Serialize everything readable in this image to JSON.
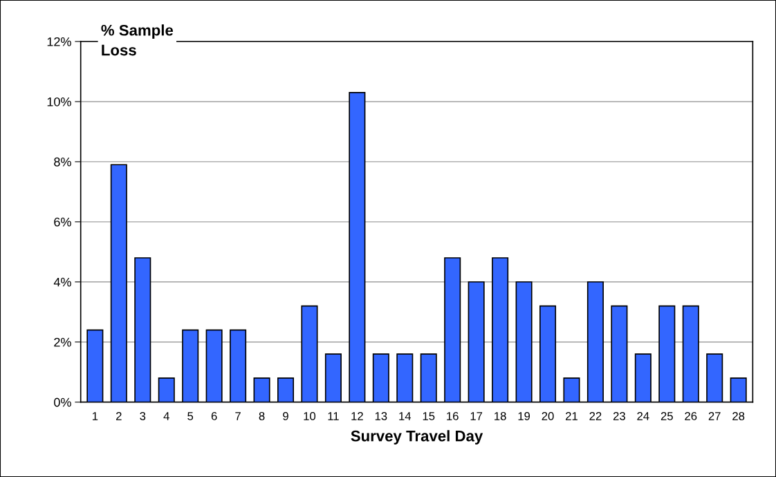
{
  "chart_data": {
    "type": "bar",
    "ylabel": "% Sample\nLoss",
    "xlabel": "Survey Travel Day",
    "categories": [
      "1",
      "2",
      "3",
      "4",
      "5",
      "6",
      "7",
      "8",
      "9",
      "10",
      "11",
      "12",
      "13",
      "14",
      "15",
      "16",
      "17",
      "18",
      "19",
      "20",
      "21",
      "22",
      "23",
      "24",
      "25",
      "26",
      "27",
      "28"
    ],
    "values": [
      2.4,
      7.9,
      4.8,
      0.8,
      2.4,
      2.4,
      2.4,
      0.8,
      0.8,
      3.2,
      1.6,
      10.3,
      1.6,
      1.6,
      1.6,
      4.8,
      4.0,
      4.8,
      4.0,
      3.2,
      0.8,
      4.0,
      3.2,
      1.6,
      3.2,
      3.2,
      1.6,
      0.8
    ],
    "color": "#3366ff",
    "ylim": [
      0,
      12
    ],
    "yticks": [
      {
        "value": 0,
        "label": "0%"
      },
      {
        "value": 2,
        "label": "2%"
      },
      {
        "value": 4,
        "label": "4%"
      },
      {
        "value": 6,
        "label": "6%"
      },
      {
        "value": 8,
        "label": "8%"
      },
      {
        "value": 10,
        "label": "10%"
      },
      {
        "value": 12,
        "label": "12%"
      }
    ],
    "grid": "y"
  }
}
